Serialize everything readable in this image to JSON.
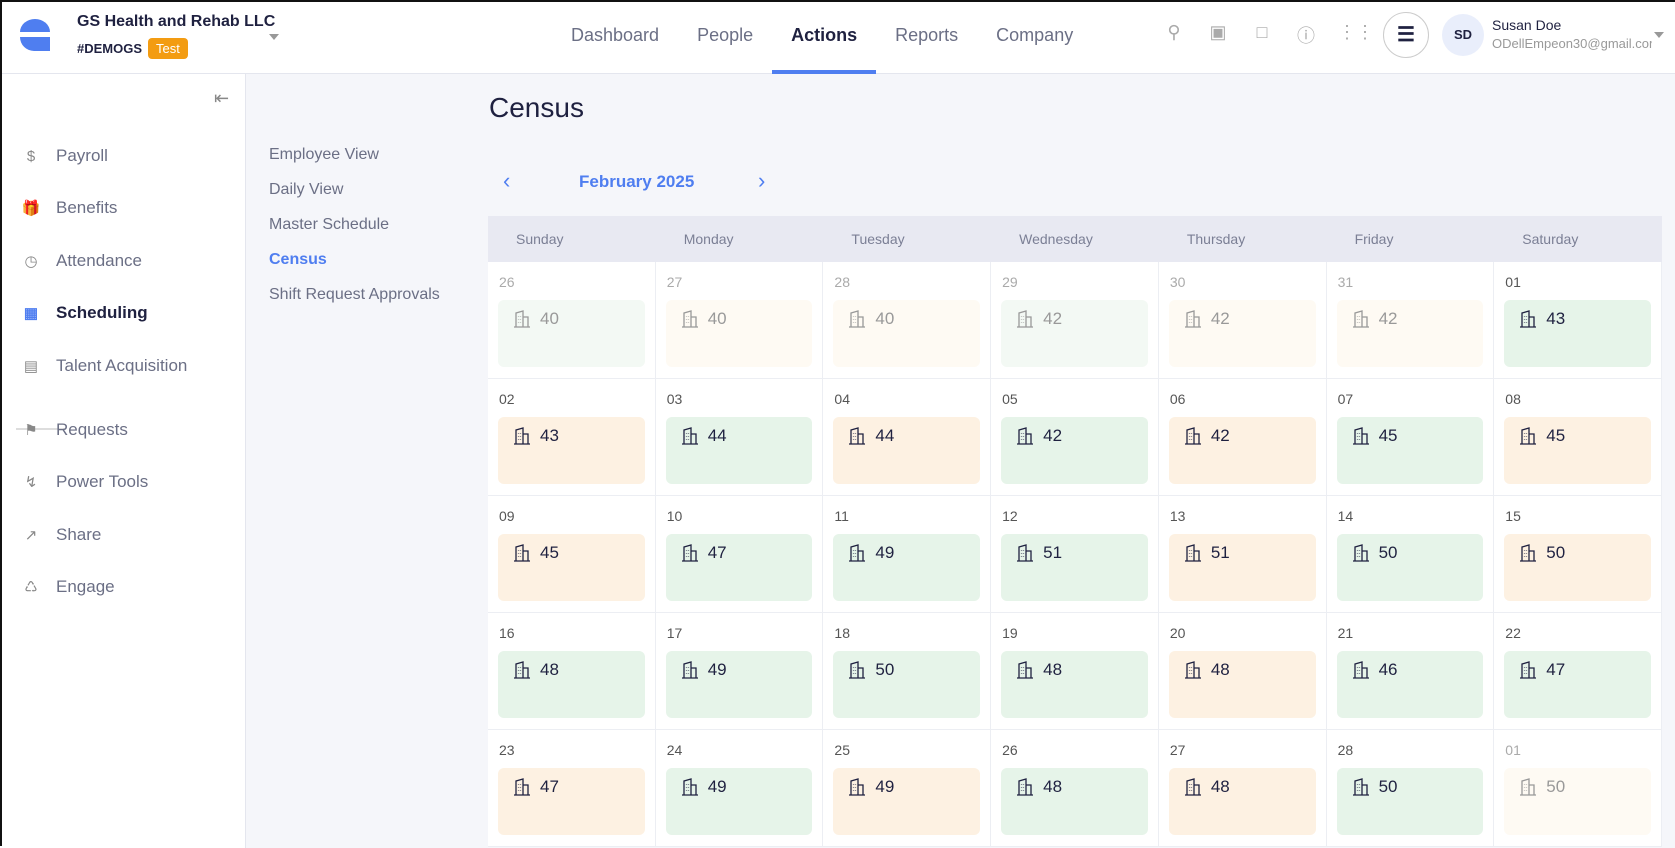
{
  "header": {
    "org": "GS Health and Rehab LLC",
    "code": "#DEMOGS",
    "badge": "Test",
    "nav": [
      "Dashboard",
      "People",
      "Actions",
      "Reports",
      "Company"
    ],
    "active_nav": "Actions",
    "user": {
      "initials": "SD",
      "name": "Susan Doe",
      "email": "ODellEmpeon30@gmail.com"
    }
  },
  "sidebar": {
    "items": [
      {
        "label": "Payroll",
        "icon": "payroll-icon"
      },
      {
        "label": "Benefits",
        "icon": "gift-icon"
      },
      {
        "label": "Attendance",
        "icon": "clock-icon"
      },
      {
        "label": "Scheduling",
        "icon": "calendar-icon"
      },
      {
        "label": "Talent Acquisition",
        "icon": "talent-icon"
      },
      {
        "label": "Requests",
        "icon": "requests-icon"
      },
      {
        "label": "Power Tools",
        "icon": "bolt-icon"
      },
      {
        "label": "Share",
        "icon": "share-icon"
      },
      {
        "label": "Engage",
        "icon": "engage-icon"
      }
    ],
    "active": "Scheduling"
  },
  "subnav": {
    "items": [
      "Employee View",
      "Daily View",
      "Master Schedule",
      "Census",
      "Shift Request Approvals"
    ],
    "active": "Census"
  },
  "main": {
    "title": "Census",
    "month": "February 2025",
    "days": [
      "Sunday",
      "Monday",
      "Tuesday",
      "Wednesday",
      "Thursday",
      "Friday",
      "Saturday"
    ],
    "colors": {
      "green": "#e6f4e9",
      "orange": "#fdf1e2",
      "accent": "#4f7ef0"
    },
    "weeks": [
      [
        {
          "d": "26",
          "n": 40,
          "c": "g",
          "m": true
        },
        {
          "d": "27",
          "n": 40,
          "c": "o",
          "m": true
        },
        {
          "d": "28",
          "n": 40,
          "c": "o",
          "m": true
        },
        {
          "d": "29",
          "n": 42,
          "c": "g",
          "m": true
        },
        {
          "d": "30",
          "n": 42,
          "c": "o",
          "m": true
        },
        {
          "d": "31",
          "n": 42,
          "c": "o",
          "m": true
        },
        {
          "d": "01",
          "n": 43,
          "c": "g"
        }
      ],
      [
        {
          "d": "02",
          "n": 43,
          "c": "o"
        },
        {
          "d": "03",
          "n": 44,
          "c": "g"
        },
        {
          "d": "04",
          "n": 44,
          "c": "o"
        },
        {
          "d": "05",
          "n": 42,
          "c": "g"
        },
        {
          "d": "06",
          "n": 42,
          "c": "o"
        },
        {
          "d": "07",
          "n": 45,
          "c": "g"
        },
        {
          "d": "08",
          "n": 45,
          "c": "o"
        }
      ],
      [
        {
          "d": "09",
          "n": 45,
          "c": "o"
        },
        {
          "d": "10",
          "n": 47,
          "c": "g"
        },
        {
          "d": "11",
          "n": 49,
          "c": "g"
        },
        {
          "d": "12",
          "n": 51,
          "c": "g"
        },
        {
          "d": "13",
          "n": 51,
          "c": "o"
        },
        {
          "d": "14",
          "n": 50,
          "c": "g"
        },
        {
          "d": "15",
          "n": 50,
          "c": "o"
        }
      ],
      [
        {
          "d": "16",
          "n": 48,
          "c": "g"
        },
        {
          "d": "17",
          "n": 49,
          "c": "g"
        },
        {
          "d": "18",
          "n": 50,
          "c": "g"
        },
        {
          "d": "19",
          "n": 48,
          "c": "g"
        },
        {
          "d": "20",
          "n": 48,
          "c": "o"
        },
        {
          "d": "21",
          "n": 46,
          "c": "g"
        },
        {
          "d": "22",
          "n": 47,
          "c": "g"
        }
      ],
      [
        {
          "d": "23",
          "n": 47,
          "c": "o"
        },
        {
          "d": "24",
          "n": 49,
          "c": "g"
        },
        {
          "d": "25",
          "n": 49,
          "c": "o"
        },
        {
          "d": "26",
          "n": 48,
          "c": "g"
        },
        {
          "d": "27",
          "n": 48,
          "c": "o"
        },
        {
          "d": "28",
          "n": 50,
          "c": "g"
        },
        {
          "d": "01",
          "n": 50,
          "c": "o",
          "m": true
        }
      ]
    ]
  }
}
